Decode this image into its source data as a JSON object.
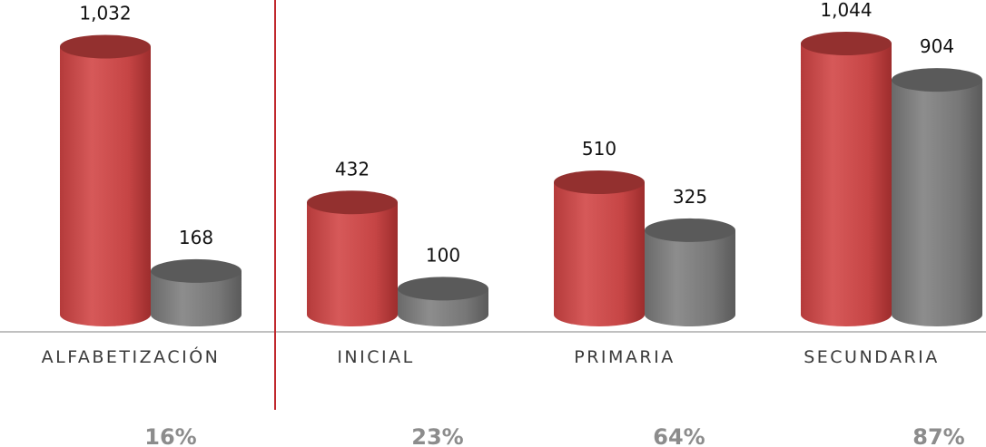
{
  "chart_data": {
    "type": "bar",
    "categories": [
      "ALFABETIZACIÓN",
      "INICIAL",
      "PRIMARIA",
      "SECUNDARIA"
    ],
    "series": [
      {
        "values": [
          1032,
          432,
          510,
          1044
        ],
        "color": "#c94b4b"
      },
      {
        "values": [
          168,
          100,
          325,
          904
        ],
        "color": "#7a7a7a"
      }
    ],
    "value_labels": [
      [
        "1,032",
        "432",
        "510",
        "1,044"
      ],
      [
        "168",
        "100",
        "325",
        "904"
      ]
    ],
    "percentages": [
      "16%",
      "23%",
      "64%",
      "87%"
    ],
    "ylim": [
      0,
      1100
    ],
    "grid": false,
    "legend": "none",
    "divider_color": "#c0282d"
  }
}
